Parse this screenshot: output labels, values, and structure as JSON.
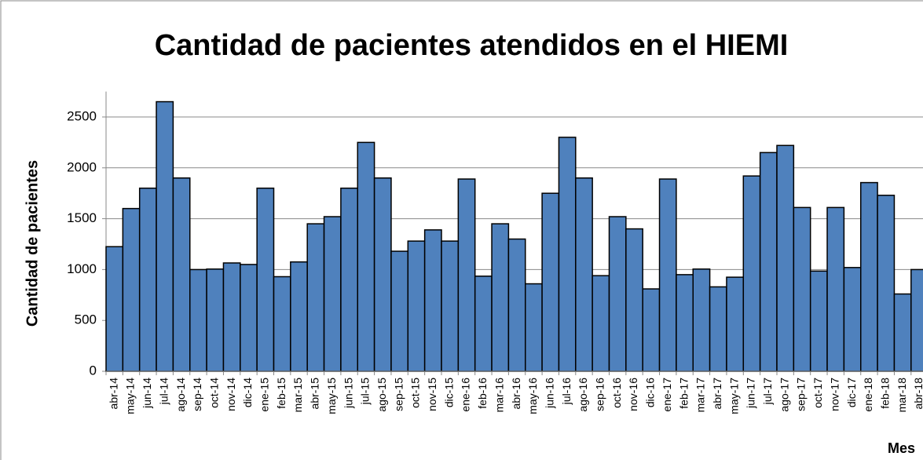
{
  "chart_data": {
    "type": "bar",
    "title": "Cantidad de pacientes atendidos en el HIEMI",
    "y_label": "Cantidad de pacientes",
    "x_label": "Mes",
    "categories": [
      "abr-14",
      "may-14",
      "jun-14",
      "jul-14",
      "ago-14",
      "sep-14",
      "oct-14",
      "nov-14",
      "dic-14",
      "ene-15",
      "feb-15",
      "mar-15",
      "abr-15",
      "may-15",
      "jun-15",
      "jul-15",
      "ago-15",
      "sep-15",
      "oct-15",
      "nov-15",
      "dic-15",
      "ene-16",
      "feb-16",
      "mar-16",
      "abr-16",
      "may-16",
      "jun-16",
      "jul-16",
      "ago-16",
      "sep-16",
      "oct-16",
      "nov-16",
      "dic-16",
      "ene-17",
      "feb-17",
      "mar-17",
      "abr-17",
      "may-17",
      "jun-17",
      "jul-17",
      "ago-17",
      "sep-17",
      "oct-17",
      "nov-17",
      "dic-17",
      "ene-18",
      "feb-18",
      "mar-18",
      "abr-18"
    ],
    "values": [
      1225,
      1600,
      1800,
      2650,
      1900,
      1000,
      1005,
      1065,
      1050,
      1800,
      930,
      1075,
      1450,
      1520,
      1800,
      2250,
      1900,
      1180,
      1280,
      1390,
      1280,
      1890,
      935,
      1450,
      1300,
      860,
      1750,
      2300,
      1900,
      940,
      1520,
      1400,
      810,
      1890,
      950,
      1005,
      830,
      925,
      1920,
      2150,
      2220,
      1610,
      985,
      1610,
      1020,
      1855,
      1730,
      760,
      1000
    ],
    "color": "#4f81bd",
    "ylim": [
      0,
      2750
    ],
    "yticks": [
      0,
      500,
      1000,
      1500,
      2000,
      2500
    ],
    "grid": true
  }
}
